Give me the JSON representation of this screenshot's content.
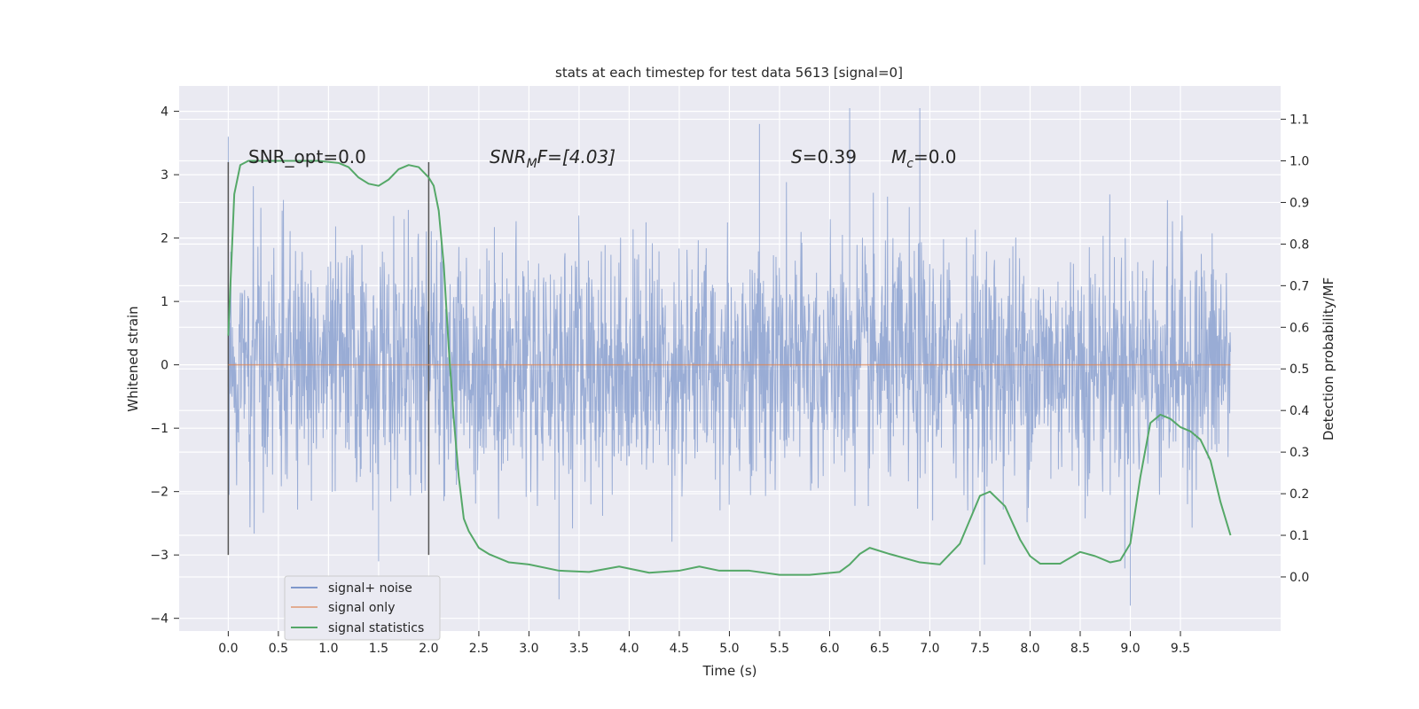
{
  "chart_data": {
    "type": "line",
    "title": "stats at each timestep for test data 5613 [signal=0]",
    "xlabel": "Time (s)",
    "ylabel": "Whitened strain",
    "y2label": "Detection probability/MF",
    "xlim": [
      -0.49,
      10.5
    ],
    "ylim": [
      -4.2,
      4.4
    ],
    "y2lim": [
      -0.13,
      1.18
    ],
    "xticks": [
      "0.0",
      "0.5",
      "1.0",
      "1.5",
      "2.0",
      "2.5",
      "3.0",
      "3.5",
      "4.0",
      "4.5",
      "5.0",
      "5.5",
      "6.0",
      "6.5",
      "7.0",
      "7.5",
      "8.0",
      "8.5",
      "9.0",
      "9.5"
    ],
    "yticks": [
      "4",
      "3",
      "2",
      "1",
      "0",
      "−1",
      "−2",
      "−3",
      "−4"
    ],
    "y2ticks": [
      "1.1",
      "1.0",
      "0.9",
      "0.8",
      "0.7",
      "0.6",
      "0.5",
      "0.4",
      "0.3",
      "0.2",
      "0.1",
      "0.0"
    ],
    "grid": true,
    "legend_position": "bottom-left",
    "colors": {
      "noise": "#7e97cb",
      "signal_only": "#dd8452",
      "statistics": "#55a868",
      "vline": "#555555",
      "background": "#eaeaf2",
      "grid": "#ffffff"
    },
    "annotations": {
      "snr_opt": "SNR_opt=0.0",
      "snr_mf_base": "SNR",
      "snr_mf_sub": "M",
      "snr_mf_rest": "F=[4.03]",
      "s_sym": "S",
      "s_rest": "=0.39",
      "mc_sym": "M",
      "mc_sub": "c",
      "mc_rest": "=0.0"
    },
    "vlines_x": [
      0.0,
      2.0
    ],
    "series": [
      {
        "name": "signal+ noise",
        "axis": "left",
        "description_envelope": {
          "x_range": [
            0.0,
            10.0
          ],
          "core_range": [
            -1.3,
            1.3
          ],
          "typical_peaks": [
            -2.5,
            2.6
          ],
          "extreme_values": [
            {
              "x": 0.0,
              "y": 3.6
            },
            {
              "x": 5.3,
              "y": 3.8
            },
            {
              "x": 6.2,
              "y": 4.05
            },
            {
              "x": 6.9,
              "y": 4.05
            },
            {
              "x": 1.5,
              "y": -3.1
            },
            {
              "x": 3.3,
              "y": -3.7
            },
            {
              "x": 9.0,
              "y": -3.8
            }
          ]
        }
      },
      {
        "name": "signal only",
        "axis": "left",
        "x": [
          0.0,
          10.0
        ],
        "values": [
          0.0,
          0.0
        ]
      },
      {
        "name": "signal statistics",
        "axis": "right",
        "x": [
          0.0,
          0.06,
          0.12,
          0.2,
          0.35,
          0.6,
          0.9,
          1.1,
          1.2,
          1.3,
          1.4,
          1.5,
          1.6,
          1.7,
          1.8,
          1.9,
          2.0,
          2.05,
          2.1,
          2.15,
          2.2,
          2.25,
          2.3,
          2.35,
          2.4,
          2.5,
          2.6,
          2.8,
          3.0,
          3.3,
          3.6,
          3.9,
          4.2,
          4.5,
          4.7,
          4.9,
          5.2,
          5.5,
          5.8,
          6.1,
          6.2,
          6.3,
          6.4,
          6.6,
          6.9,
          7.1,
          7.3,
          7.5,
          7.6,
          7.75,
          7.9,
          8.0,
          8.1,
          8.3,
          8.5,
          8.65,
          8.8,
          8.9,
          9.0,
          9.1,
          9.2,
          9.3,
          9.4,
          9.5,
          9.6,
          9.7,
          9.8,
          9.9,
          10.0
        ],
        "values": [
          0.58,
          0.92,
          0.99,
          1.0,
          1.0,
          1.0,
          1.0,
          0.995,
          0.985,
          0.96,
          0.945,
          0.94,
          0.955,
          0.98,
          0.99,
          0.985,
          0.96,
          0.94,
          0.88,
          0.75,
          0.55,
          0.38,
          0.24,
          0.14,
          0.11,
          0.07,
          0.055,
          0.035,
          0.03,
          0.015,
          0.012,
          0.025,
          0.01,
          0.015,
          0.025,
          0.015,
          0.015,
          0.005,
          0.005,
          0.012,
          0.03,
          0.055,
          0.07,
          0.055,
          0.035,
          0.03,
          0.08,
          0.195,
          0.205,
          0.17,
          0.09,
          0.05,
          0.032,
          0.032,
          0.06,
          0.05,
          0.035,
          0.04,
          0.08,
          0.24,
          0.37,
          0.39,
          0.38,
          0.36,
          0.35,
          0.33,
          0.28,
          0.18,
          0.1
        ]
      }
    ]
  }
}
